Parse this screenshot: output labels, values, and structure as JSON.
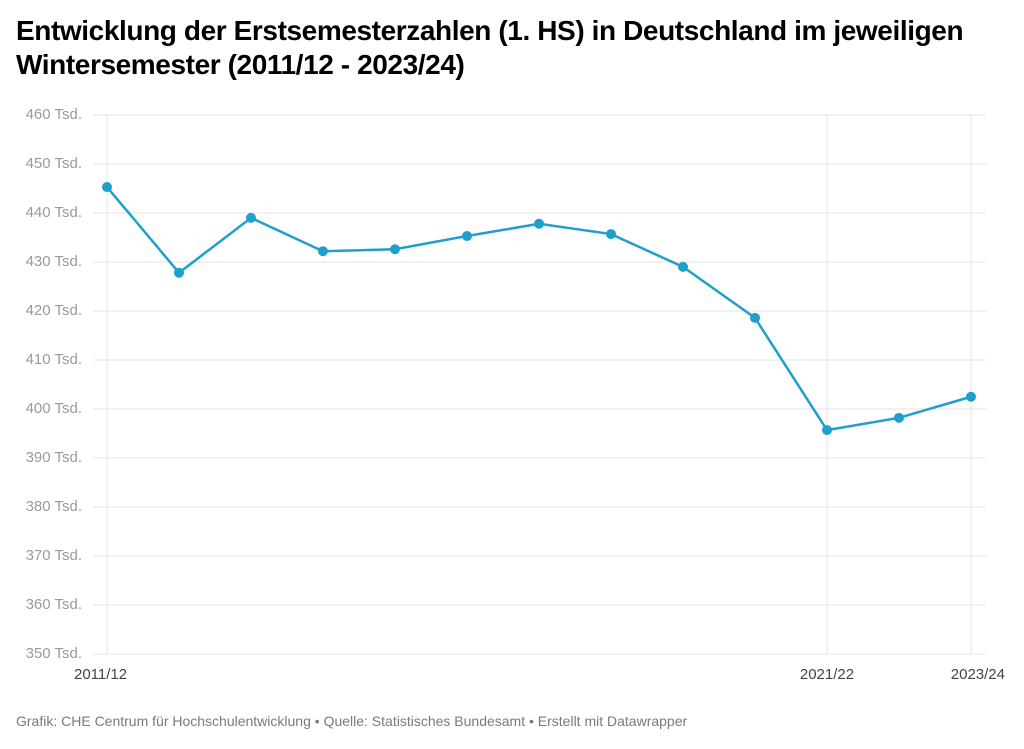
{
  "chart_data": {
    "type": "line",
    "title": "Entwicklung der Erstsemesterzahlen (1. HS) in Deutschland im jeweiligen Wintersemester (2011/12 - 2023/24)",
    "categories": [
      "2011/12",
      null,
      null,
      null,
      null,
      null,
      null,
      null,
      null,
      null,
      "2021/22",
      null,
      "2023/24"
    ],
    "series": [
      {
        "name": "Erstsemester",
        "color": "#1f9fcb",
        "values": [
          445.3,
          427.8,
          439.0,
          432.2,
          432.6,
          435.3,
          437.8,
          435.7,
          429.0,
          418.6,
          395.7,
          398.2,
          402.5
        ]
      }
    ],
    "ylim": [
      350,
      460
    ],
    "yticks": [
      {
        "value": 350,
        "label": "350 Tsd."
      },
      {
        "value": 360,
        "label": "360 Tsd."
      },
      {
        "value": 370,
        "label": "370 Tsd."
      },
      {
        "value": 380,
        "label": "380 Tsd."
      },
      {
        "value": 390,
        "label": "390 Tsd."
      },
      {
        "value": 400,
        "label": "400 Tsd."
      },
      {
        "value": 410,
        "label": "410 Tsd."
      },
      {
        "value": 420,
        "label": "420 Tsd."
      },
      {
        "value": 430,
        "label": "430 Tsd."
      },
      {
        "value": 440,
        "label": "440 Tsd."
      },
      {
        "value": 450,
        "label": "450 Tsd."
      },
      {
        "value": 460,
        "label": "460 Tsd."
      }
    ],
    "grid": true,
    "source": "Grafik: CHE Centrum für Hochschulentwicklung • Quelle: Statistisches Bundesamt • Erstellt mit Datawrapper"
  }
}
